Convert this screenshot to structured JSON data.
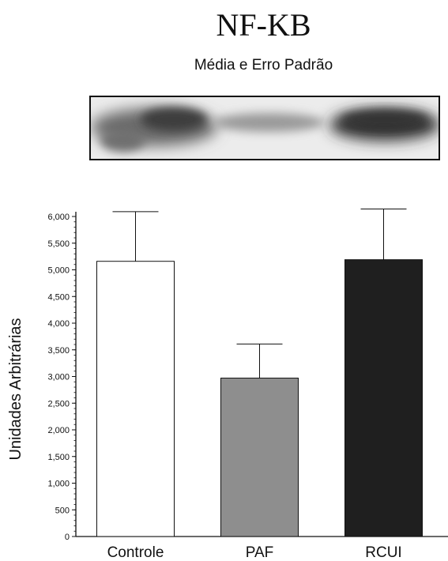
{
  "header": {
    "title": "NF-KB",
    "subtitle": "Média e Erro Padrão"
  },
  "chart_data": {
    "type": "bar",
    "categories": [
      "Controle",
      "PAF",
      "RCUI"
    ],
    "values": [
      5160,
      2970,
      5190
    ],
    "errors": [
      930,
      640,
      950
    ],
    "bar_colors": [
      "#ffffff",
      "#8e8e8e",
      "#1f1f1f"
    ],
    "ylabel": "Unidades Arbitrárias",
    "ylim": [
      0,
      6000
    ],
    "yticks": [
      0,
      500,
      1000,
      1500,
      2000,
      2500,
      3000,
      3500,
      4000,
      4500,
      5000,
      5500,
      6000
    ],
    "ytick_labels": [
      "0",
      "500",
      "1,000",
      "1,500",
      "2,000",
      "2,500",
      "3,000",
      "3,500",
      "4,000",
      "4,500",
      "5,000",
      "5,500",
      "6,000"
    ],
    "grid": false
  }
}
